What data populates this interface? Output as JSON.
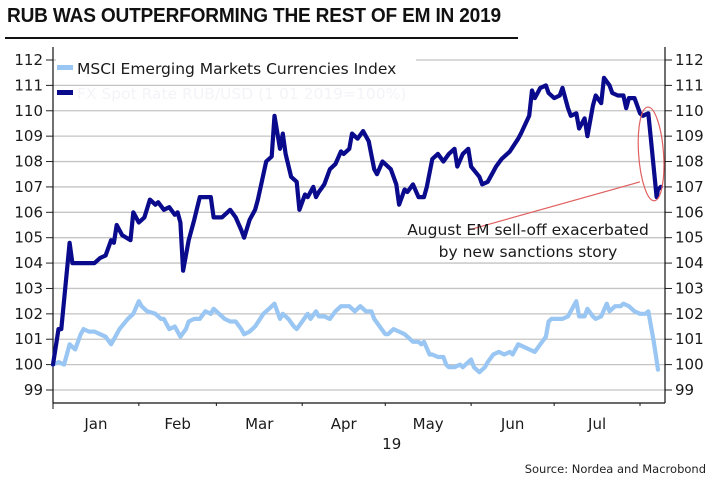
{
  "chart_data": {
    "type": "line",
    "title": "RUB WAS OUTPERFORMING THE REST OF EM IN 2019",
    "source": "Source: Nordea and Macrobond",
    "x_unit": "day of 2019 (0 = 1 Jan)",
    "xlim": [
      0,
      220
    ],
    "ylim": [
      98.7,
      112.3
    ],
    "y_ticks": [
      99,
      100,
      101,
      102,
      103,
      104,
      105,
      106,
      107,
      108,
      109,
      110,
      111,
      112
    ],
    "y_tick_labels": [
      "99",
      "100",
      "101",
      "102",
      "103",
      "104",
      "105",
      "106",
      "107",
      "108",
      "109",
      "110",
      "111",
      "112"
    ],
    "x_tick_positions": [
      0,
      31,
      59,
      90,
      120,
      151,
      181,
      212
    ],
    "x_month_labels": [
      {
        "label": "Jan",
        "x": 15.5
      },
      {
        "label": "Feb",
        "x": 45
      },
      {
        "label": "Mar",
        "x": 74.5
      },
      {
        "label": "Apr",
        "x": 105
      },
      {
        "label": "May",
        "x": 135.5
      },
      {
        "label": "Jun",
        "x": 166
      },
      {
        "label": "Jul",
        "x": 196.5
      }
    ],
    "x_year_label": {
      "label": "19",
      "x": 105
    },
    "grid": true,
    "dual_axis": true,
    "legend": {
      "placement": "top-left",
      "entries": [
        {
          "name": "MSCI Emerging Markets Currencies Index",
          "color": "#99c6f2"
        },
        {
          "name": "FX Spot Rate RUB/USD (1 01 2019=100%)",
          "color": "#0a0a8c"
        }
      ]
    },
    "series": [
      {
        "name": "MSCI Emerging Markets Currencies Index",
        "color": "#99c6f2",
        "x": [
          0,
          2,
          4,
          6,
          8,
          10,
          11,
          13,
          15,
          17,
          19,
          21,
          22,
          24,
          27,
          29,
          31,
          32,
          34,
          37,
          39,
          40,
          42,
          44,
          46,
          48,
          49,
          51,
          53,
          55,
          57,
          58,
          60,
          62,
          64,
          66,
          68,
          69,
          71,
          73,
          76,
          78,
          80,
          82,
          83,
          85,
          87,
          88,
          90,
          92,
          93,
          95,
          96,
          98,
          100,
          102,
          104,
          105,
          107,
          109,
          111,
          113,
          115,
          116,
          118,
          120,
          121,
          123,
          125,
          127,
          128,
          130,
          132,
          133,
          134,
          136,
          137,
          139,
          141,
          142,
          143,
          145,
          147,
          148,
          149,
          151,
          152,
          154,
          156,
          157,
          159,
          161,
          163,
          165,
          166,
          168,
          170,
          172,
          174,
          176,
          178,
          179,
          180,
          182,
          184,
          186,
          188,
          189,
          190,
          192,
          193,
          195,
          196,
          198,
          200,
          201,
          203,
          205,
          206,
          208,
          210,
          212,
          214,
          215,
          217,
          218.5
        ],
        "values": [
          100.0,
          100.1,
          100.0,
          100.8,
          100.6,
          101.2,
          101.4,
          101.3,
          101.3,
          101.2,
          101.1,
          100.8,
          101.0,
          101.4,
          101.8,
          102.0,
          102.5,
          102.3,
          102.1,
          102.0,
          101.8,
          101.8,
          101.4,
          101.5,
          101.1,
          101.4,
          101.7,
          101.8,
          101.8,
          102.1,
          102.0,
          102.2,
          102.0,
          101.8,
          101.7,
          101.7,
          101.4,
          101.2,
          101.3,
          101.5,
          102.0,
          102.2,
          102.4,
          101.8,
          102.0,
          101.8,
          101.5,
          101.4,
          101.7,
          102.0,
          101.8,
          102.1,
          101.9,
          101.9,
          101.8,
          102.1,
          102.3,
          102.3,
          102.3,
          102.1,
          102.3,
          102.1,
          102.1,
          101.8,
          101.5,
          101.2,
          101.2,
          101.4,
          101.3,
          101.2,
          101.1,
          100.9,
          100.9,
          100.8,
          100.9,
          100.4,
          100.4,
          100.3,
          100.3,
          100.0,
          99.9,
          99.9,
          100.0,
          99.9,
          100.0,
          100.2,
          99.9,
          99.7,
          99.9,
          100.1,
          100.4,
          100.5,
          100.4,
          100.5,
          100.4,
          100.8,
          100.7,
          100.6,
          100.5,
          100.8,
          101.1,
          101.7,
          101.8,
          101.8,
          101.8,
          101.9,
          102.3,
          102.5,
          101.9,
          101.9,
          102.2,
          101.9,
          101.8,
          101.9,
          102.4,
          102.1,
          102.3,
          102.3,
          102.4,
          102.3,
          102.1,
          102.0,
          102.0,
          102.1,
          100.9,
          99.8
        ]
      },
      {
        "name": "FX Spot Rate RUB/USD (1 01 2019=100%)",
        "color": "#0a0a8c",
        "x": [
          0,
          2,
          3,
          6,
          7,
          12,
          15,
          17,
          19,
          21,
          22,
          23,
          25,
          28,
          29,
          31,
          33,
          35,
          37,
          38,
          40,
          42,
          44,
          45,
          46,
          47,
          49,
          51,
          53,
          55,
          57,
          58,
          60,
          61,
          64,
          66,
          68,
          69,
          71,
          73,
          74,
          77,
          79,
          80,
          82,
          83,
          84,
          86,
          88,
          89,
          91,
          92,
          94,
          95,
          96,
          98,
          100,
          102,
          104,
          105,
          107,
          108,
          110,
          112,
          114,
          116,
          117,
          119,
          122,
          124,
          125,
          127,
          128,
          130,
          132,
          134,
          135,
          137,
          139,
          141,
          143,
          145,
          146,
          148,
          150,
          151,
          154,
          155,
          157,
          159,
          160,
          162,
          165,
          168,
          169,
          172,
          173,
          174,
          176,
          178,
          179,
          181,
          183,
          184,
          186,
          187,
          189,
          190,
          192,
          193,
          195,
          196,
          198,
          199,
          201,
          202,
          204,
          206,
          207,
          208,
          210,
          212,
          213,
          215,
          216,
          218,
          218.5,
          219.5
        ],
        "values": [
          100.0,
          101.4,
          101.4,
          104.8,
          104.0,
          104.0,
          104.0,
          104.2,
          104.3,
          104.9,
          104.8,
          105.5,
          105.1,
          104.9,
          106.0,
          105.6,
          105.8,
          106.5,
          106.3,
          106.4,
          106.1,
          106.2,
          105.9,
          106.0,
          105.6,
          103.7,
          104.9,
          105.7,
          106.6,
          106.6,
          106.6,
          105.8,
          105.8,
          105.8,
          106.1,
          105.8,
          105.3,
          105.0,
          105.7,
          106.1,
          106.5,
          108.0,
          108.2,
          109.8,
          108.5,
          109.1,
          108.3,
          107.4,
          107.2,
          106.1,
          106.7,
          106.6,
          107.0,
          106.6,
          106.8,
          107.1,
          107.7,
          107.9,
          108.4,
          108.3,
          108.5,
          109.1,
          108.9,
          109.2,
          108.8,
          107.7,
          107.5,
          108.0,
          107.7,
          107.1,
          106.3,
          106.9,
          106.8,
          107.1,
          106.6,
          106.6,
          107.0,
          108.1,
          108.3,
          108.0,
          108.3,
          108.5,
          107.8,
          108.3,
          108.5,
          107.8,
          107.4,
          107.1,
          107.2,
          107.6,
          107.8,
          108.1,
          108.4,
          108.9,
          109.1,
          109.8,
          110.8,
          110.5,
          110.9,
          111.0,
          110.7,
          110.5,
          110.6,
          110.9,
          110.1,
          109.8,
          109.9,
          109.3,
          109.7,
          109.0,
          110.2,
          110.6,
          110.3,
          111.3,
          111.0,
          110.7,
          110.6,
          110.6,
          110.1,
          110.5,
          110.5,
          109.9,
          109.8,
          109.9,
          108.8,
          106.6,
          106.9,
          107.0
        ]
      }
    ],
    "annotations": [
      {
        "text_lines": [
          "August EM sell-off exacerbated",
          "by new sanctions story"
        ],
        "color": "#e06060",
        "ellipse_center": {
          "x": 216,
          "value": 108.3
        },
        "ellipse_radius": {
          "x_days": 4.5,
          "value": 1.85
        },
        "pointer_from": {
          "x": 150,
          "value": 105.3
        },
        "pointer_to": {
          "x": 212,
          "value": 107.2
        }
      }
    ]
  }
}
